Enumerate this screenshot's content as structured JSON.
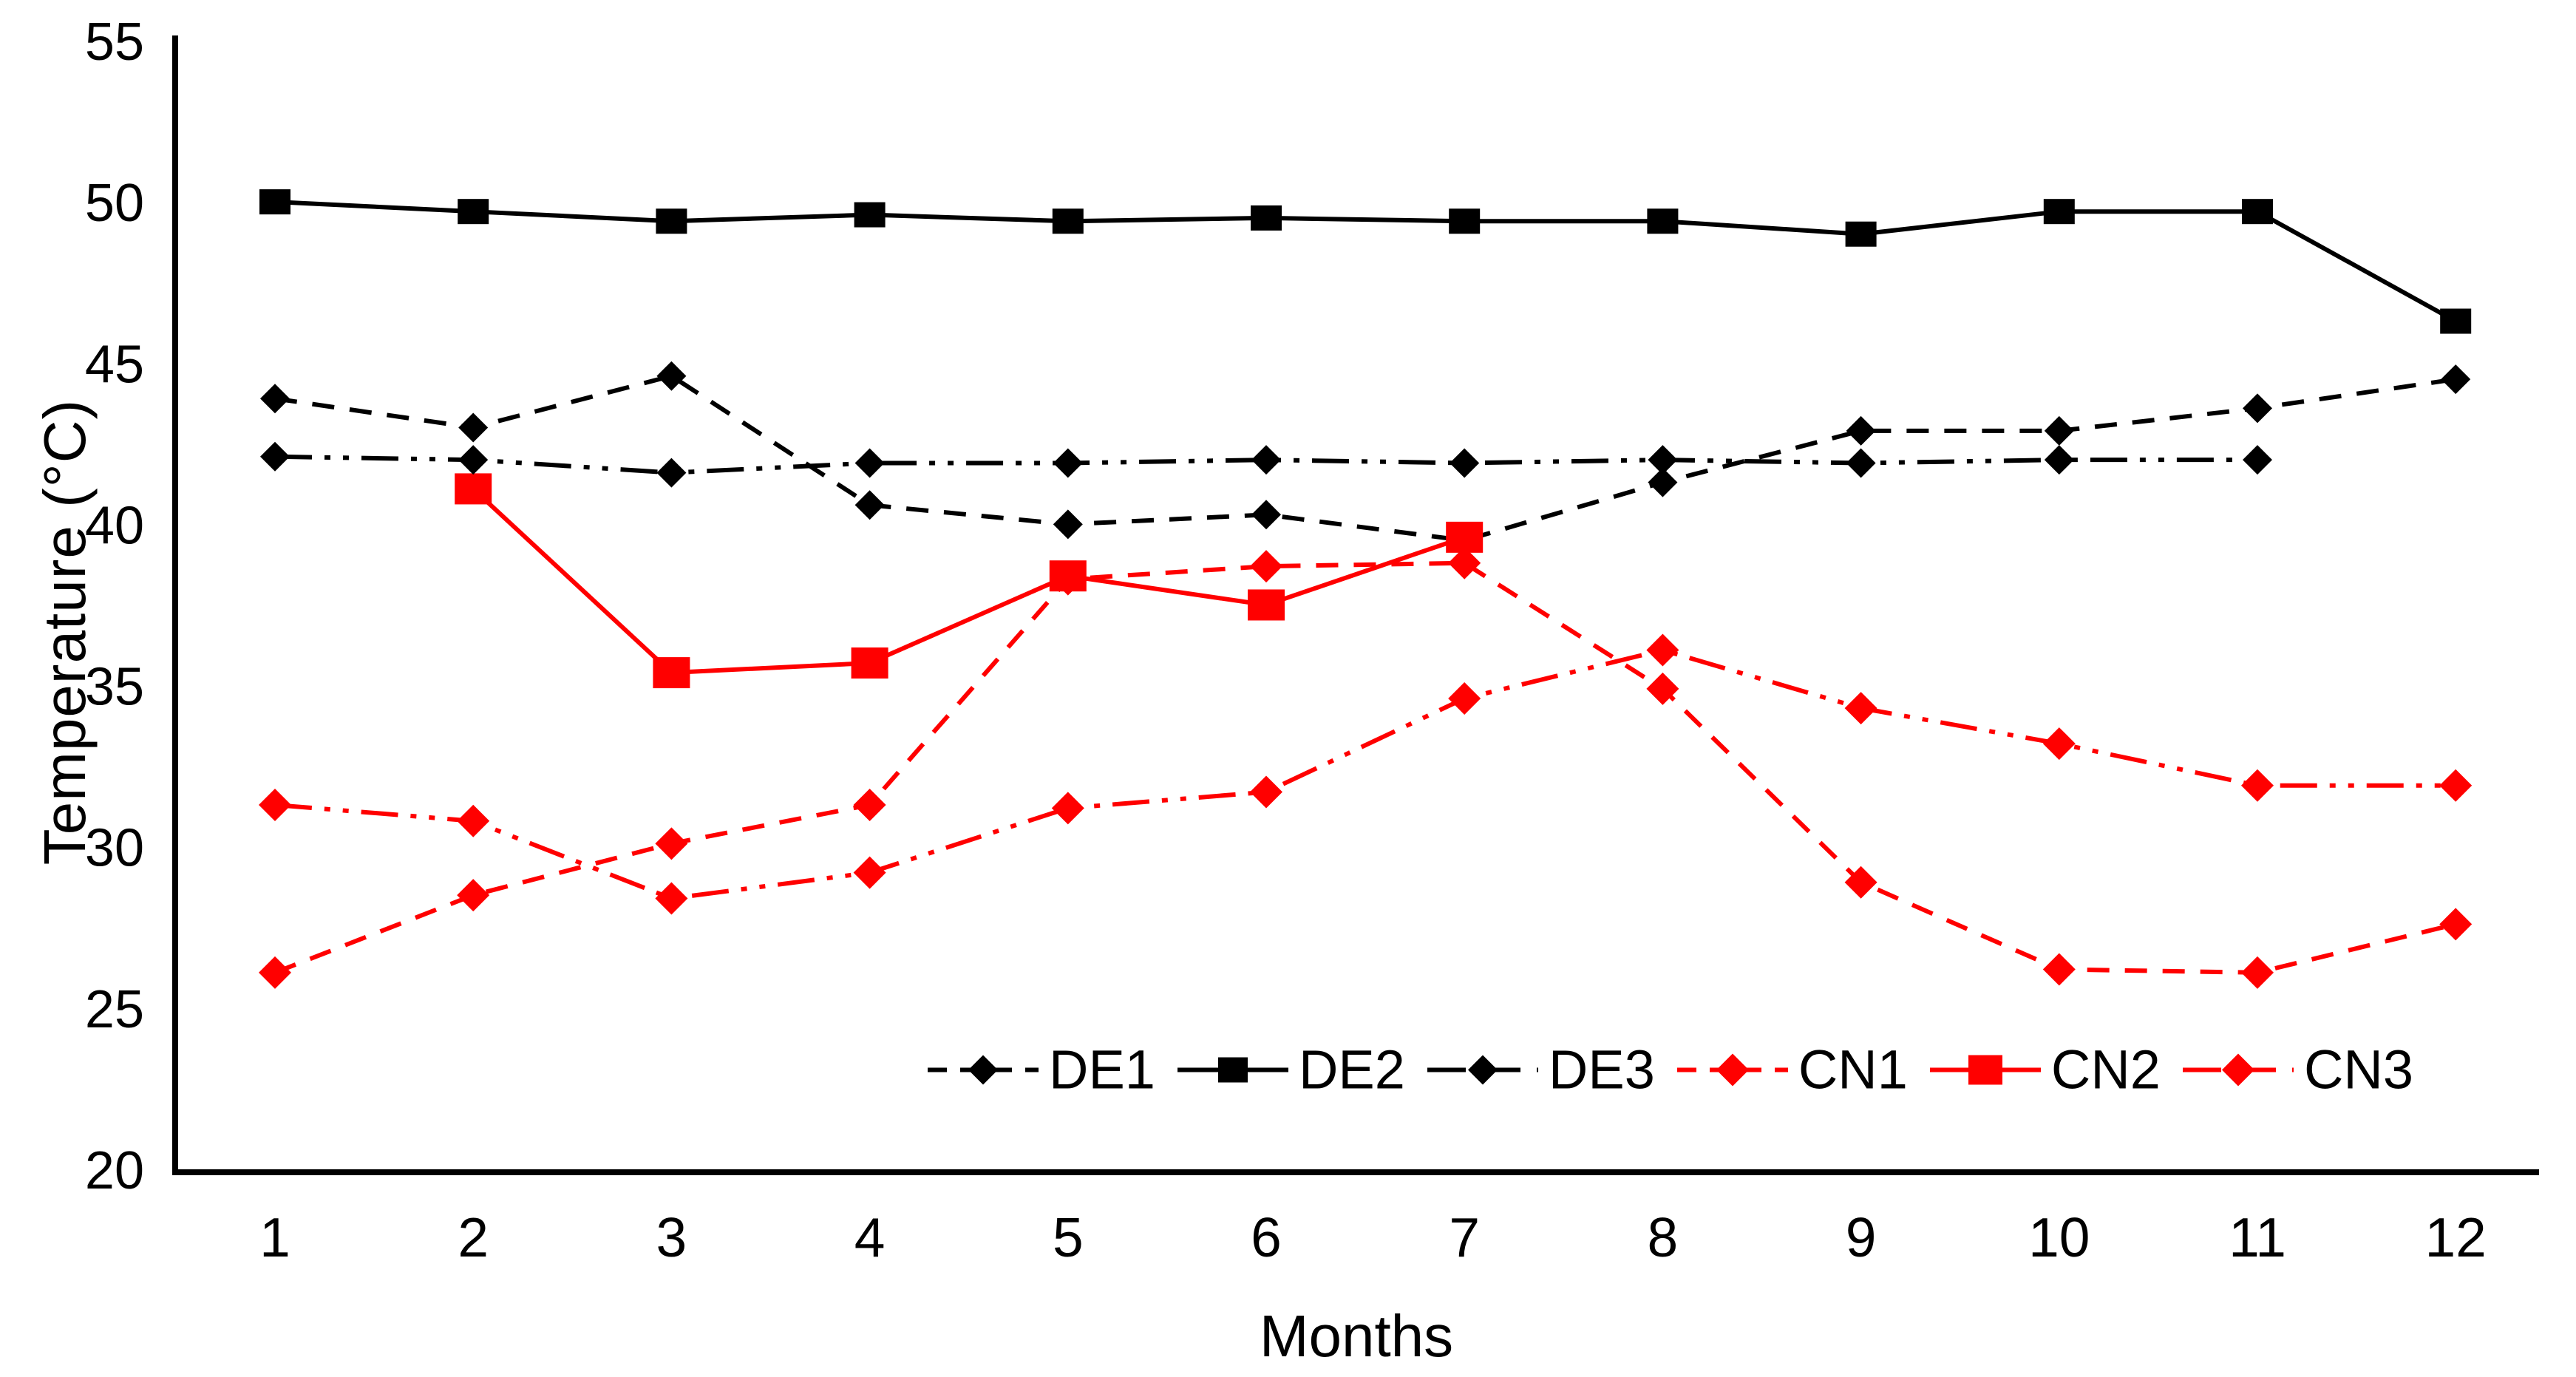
{
  "figure": {
    "background": "#ffffff",
    "axis_color": "#000000",
    "black": "#000000",
    "red": "#ff0000"
  },
  "chart_data": {
    "type": "line",
    "title": "",
    "xlabel": "Months",
    "ylabel": "Temperature (°C)",
    "x": [
      1,
      2,
      3,
      4,
      5,
      6,
      7,
      8,
      9,
      10,
      11,
      12
    ],
    "x_tick_labels": [
      "1",
      "2",
      "3",
      "4",
      "5",
      "6",
      "7",
      "8",
      "9",
      "10",
      "11",
      "12"
    ],
    "ylim": [
      20,
      55
    ],
    "y_ticks": [
      20,
      25,
      30,
      35,
      40,
      45,
      50,
      55
    ],
    "grid": "off",
    "legend_position": "bottom-inside",
    "series": [
      {
        "name": "DE1",
        "color": "#000000",
        "line_style": "dashed",
        "marker": "diamond",
        "values": [
          43.9,
          43.0,
          44.6,
          40.6,
          40.0,
          40.3,
          39.5,
          41.3,
          42.9,
          42.9,
          43.6,
          44.5
        ]
      },
      {
        "name": "DE2",
        "color": "#000000",
        "line_style": "solid",
        "marker": "square",
        "values": [
          50.0,
          49.7,
          49.4,
          49.6,
          49.4,
          49.5,
          49.4,
          49.4,
          49.0,
          49.7,
          49.7,
          46.3
        ]
      },
      {
        "name": "DE3",
        "color": "#000000",
        "line_style": "dash-dot-dot",
        "marker": "diamond",
        "values": [
          42.1,
          42.0,
          41.6,
          41.9,
          41.9,
          42.0,
          41.9,
          42.0,
          41.9,
          42.0,
          42.0,
          null
        ]
      },
      {
        "name": "CN1",
        "color": "#ff0000",
        "line_style": "dashed",
        "marker": "diamond",
        "values": [
          26.1,
          28.5,
          30.1,
          31.3,
          38.3,
          38.7,
          38.8,
          34.9,
          28.9,
          26.2,
          26.1,
          27.6
        ]
      },
      {
        "name": "CN2",
        "color": "#ff0000",
        "line_style": "solid",
        "marker": "square",
        "values": [
          null,
          41.1,
          35.4,
          35.7,
          38.4,
          37.5,
          39.6,
          null,
          null,
          null,
          null,
          null
        ]
      },
      {
        "name": "CN3",
        "color": "#ff0000",
        "line_style": "dash-dot-dot",
        "marker": "diamond",
        "values": [
          31.3,
          30.8,
          28.4,
          29.2,
          31.2,
          31.7,
          34.6,
          36.1,
          34.3,
          33.2,
          31.9,
          31.9
        ]
      }
    ]
  }
}
